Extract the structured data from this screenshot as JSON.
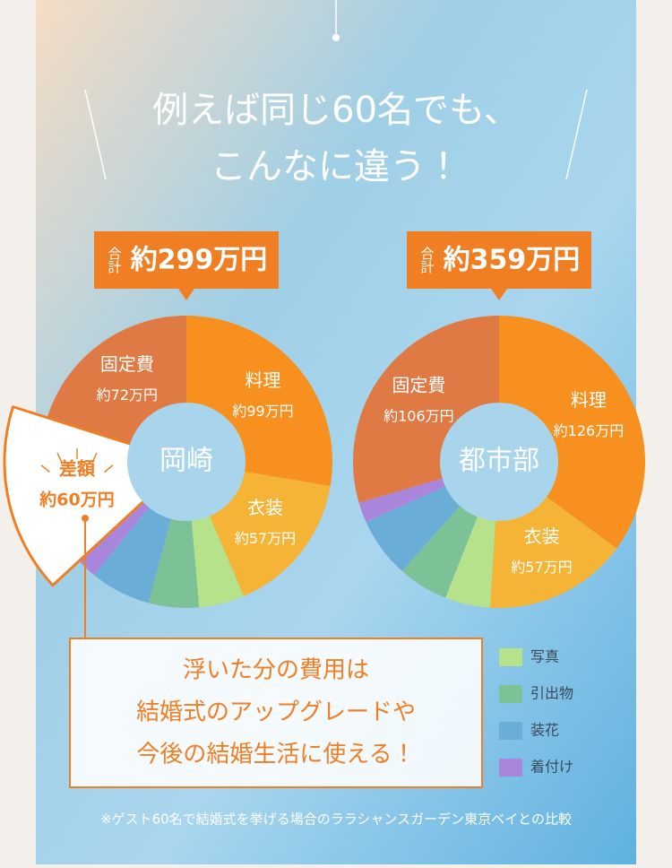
{
  "header": {
    "line1": "例えば同じ60名でも、",
    "line2": "こんなに違う！"
  },
  "chart_data": [
    {
      "type": "pie",
      "center_label": "岡崎",
      "total_prefix": "合計",
      "total_label": "約299万円",
      "categories": [
        "料理",
        "衣装",
        null,
        null,
        null,
        null,
        "固定費"
      ],
      "values": [
        99,
        57,
        18,
        20,
        24,
        8,
        72
      ],
      "value_labels": [
        "約99万円",
        "約57万円",
        null,
        null,
        null,
        null,
        "約72万円"
      ],
      "colors": [
        "#f7901e",
        "#f5b436",
        "#b5e28a",
        "#7dc196",
        "#6aaed8",
        "#a986dc",
        "#e07a45"
      ],
      "difference": {
        "label": "差額",
        "value": 60,
        "value_label": "約60万円"
      }
    },
    {
      "type": "pie",
      "center_label": "都市部",
      "total_prefix": "合計",
      "total_label": "約359万円",
      "categories": [
        "料理",
        "衣装",
        null,
        null,
        null,
        null,
        "固定費"
      ],
      "values": [
        126,
        57,
        18,
        20,
        24,
        8,
        106
      ],
      "value_labels": [
        "約126万円",
        "約57万円",
        null,
        null,
        null,
        null,
        "約106万円"
      ],
      "colors": [
        "#f7901e",
        "#f5b436",
        "#b5e28a",
        "#7dc196",
        "#6aaed8",
        "#a986dc",
        "#e07a45"
      ]
    }
  ],
  "legend": [
    {
      "name": "写真",
      "color": "#b5e28a"
    },
    {
      "name": "引出物",
      "color": "#7dc196"
    },
    {
      "name": "装花",
      "color": "#6aaed8"
    },
    {
      "name": "着付け",
      "color": "#a986dc"
    }
  ],
  "message": [
    "浮いた分の費用は",
    "結婚式のアップグレードや",
    "今後の結婚生活に使える！"
  ],
  "footnote": "※ゲスト60名で結婚式を挙げる場合のララシャンスガーデン東京ベイとの比較"
}
